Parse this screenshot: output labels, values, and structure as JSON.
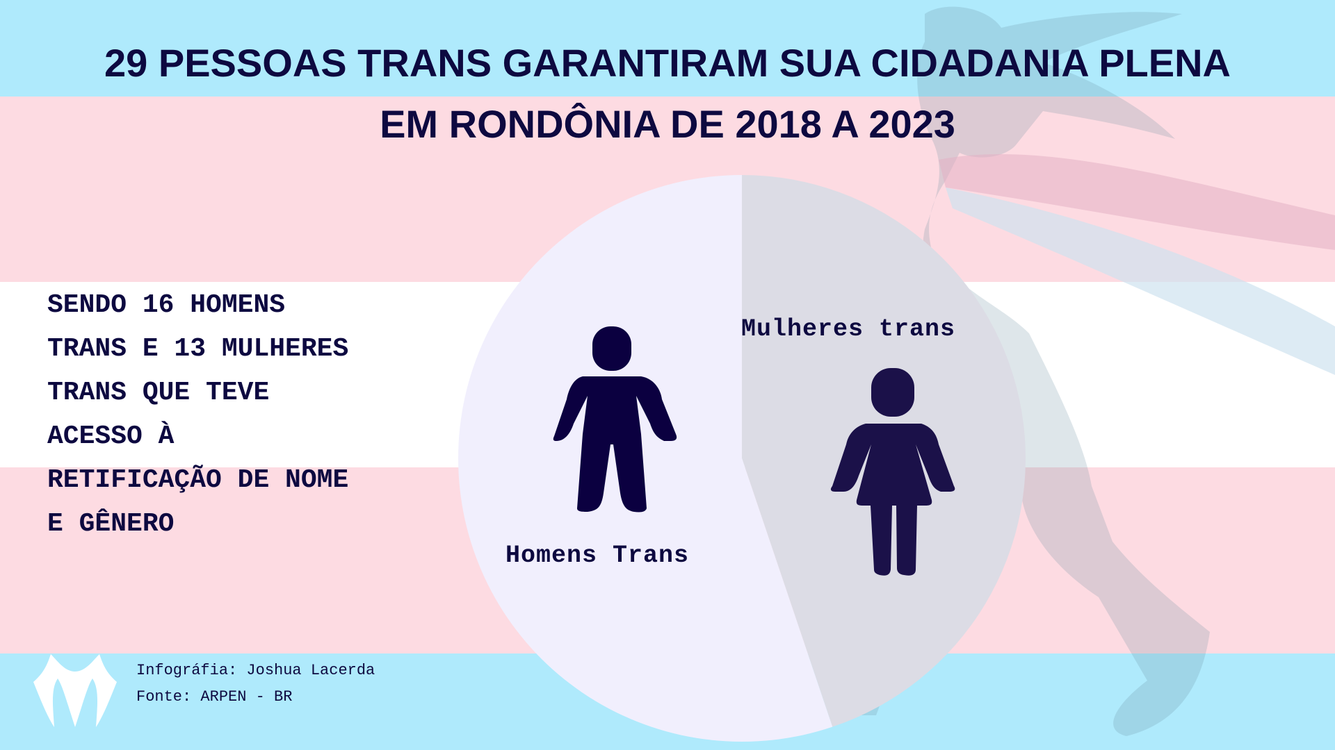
{
  "title": {
    "line1": "29 PESSOAS TRANS GARANTIRAM SUA CIDADANIA PLENA",
    "line2": "EM RONDÔNIA  DE 2018 A 2023"
  },
  "description": "SENDO 16 HOMENS\nTRANS E 13 MULHERES\nTRANS QUE TEVE\nACESSO À\nRETIFICAÇÃO DE NOME\nE GÊNERO",
  "footer": {
    "credit": "Infográfia: Joshua Lacerda",
    "source": "Fonte: ARPEN - BR"
  },
  "colors": {
    "flag_blue": "#afeafc",
    "flag_pink": "#fddbe2",
    "flag_white": "#ffffff",
    "text": "#0d0940",
    "slice_homens": "#f1effd",
    "slice_mulheres": "#dcdce5"
  },
  "chart_data": {
    "type": "pie",
    "title": "",
    "slices": [
      {
        "label": "Mulheres trans",
        "value": 13,
        "color": "#dcdce5",
        "icon": "woman-icon"
      },
      {
        "label": "Homens Trans",
        "value": 16,
        "color": "#f1effd",
        "icon": "man-icon"
      }
    ],
    "start": "top",
    "direction": "clockwise"
  }
}
